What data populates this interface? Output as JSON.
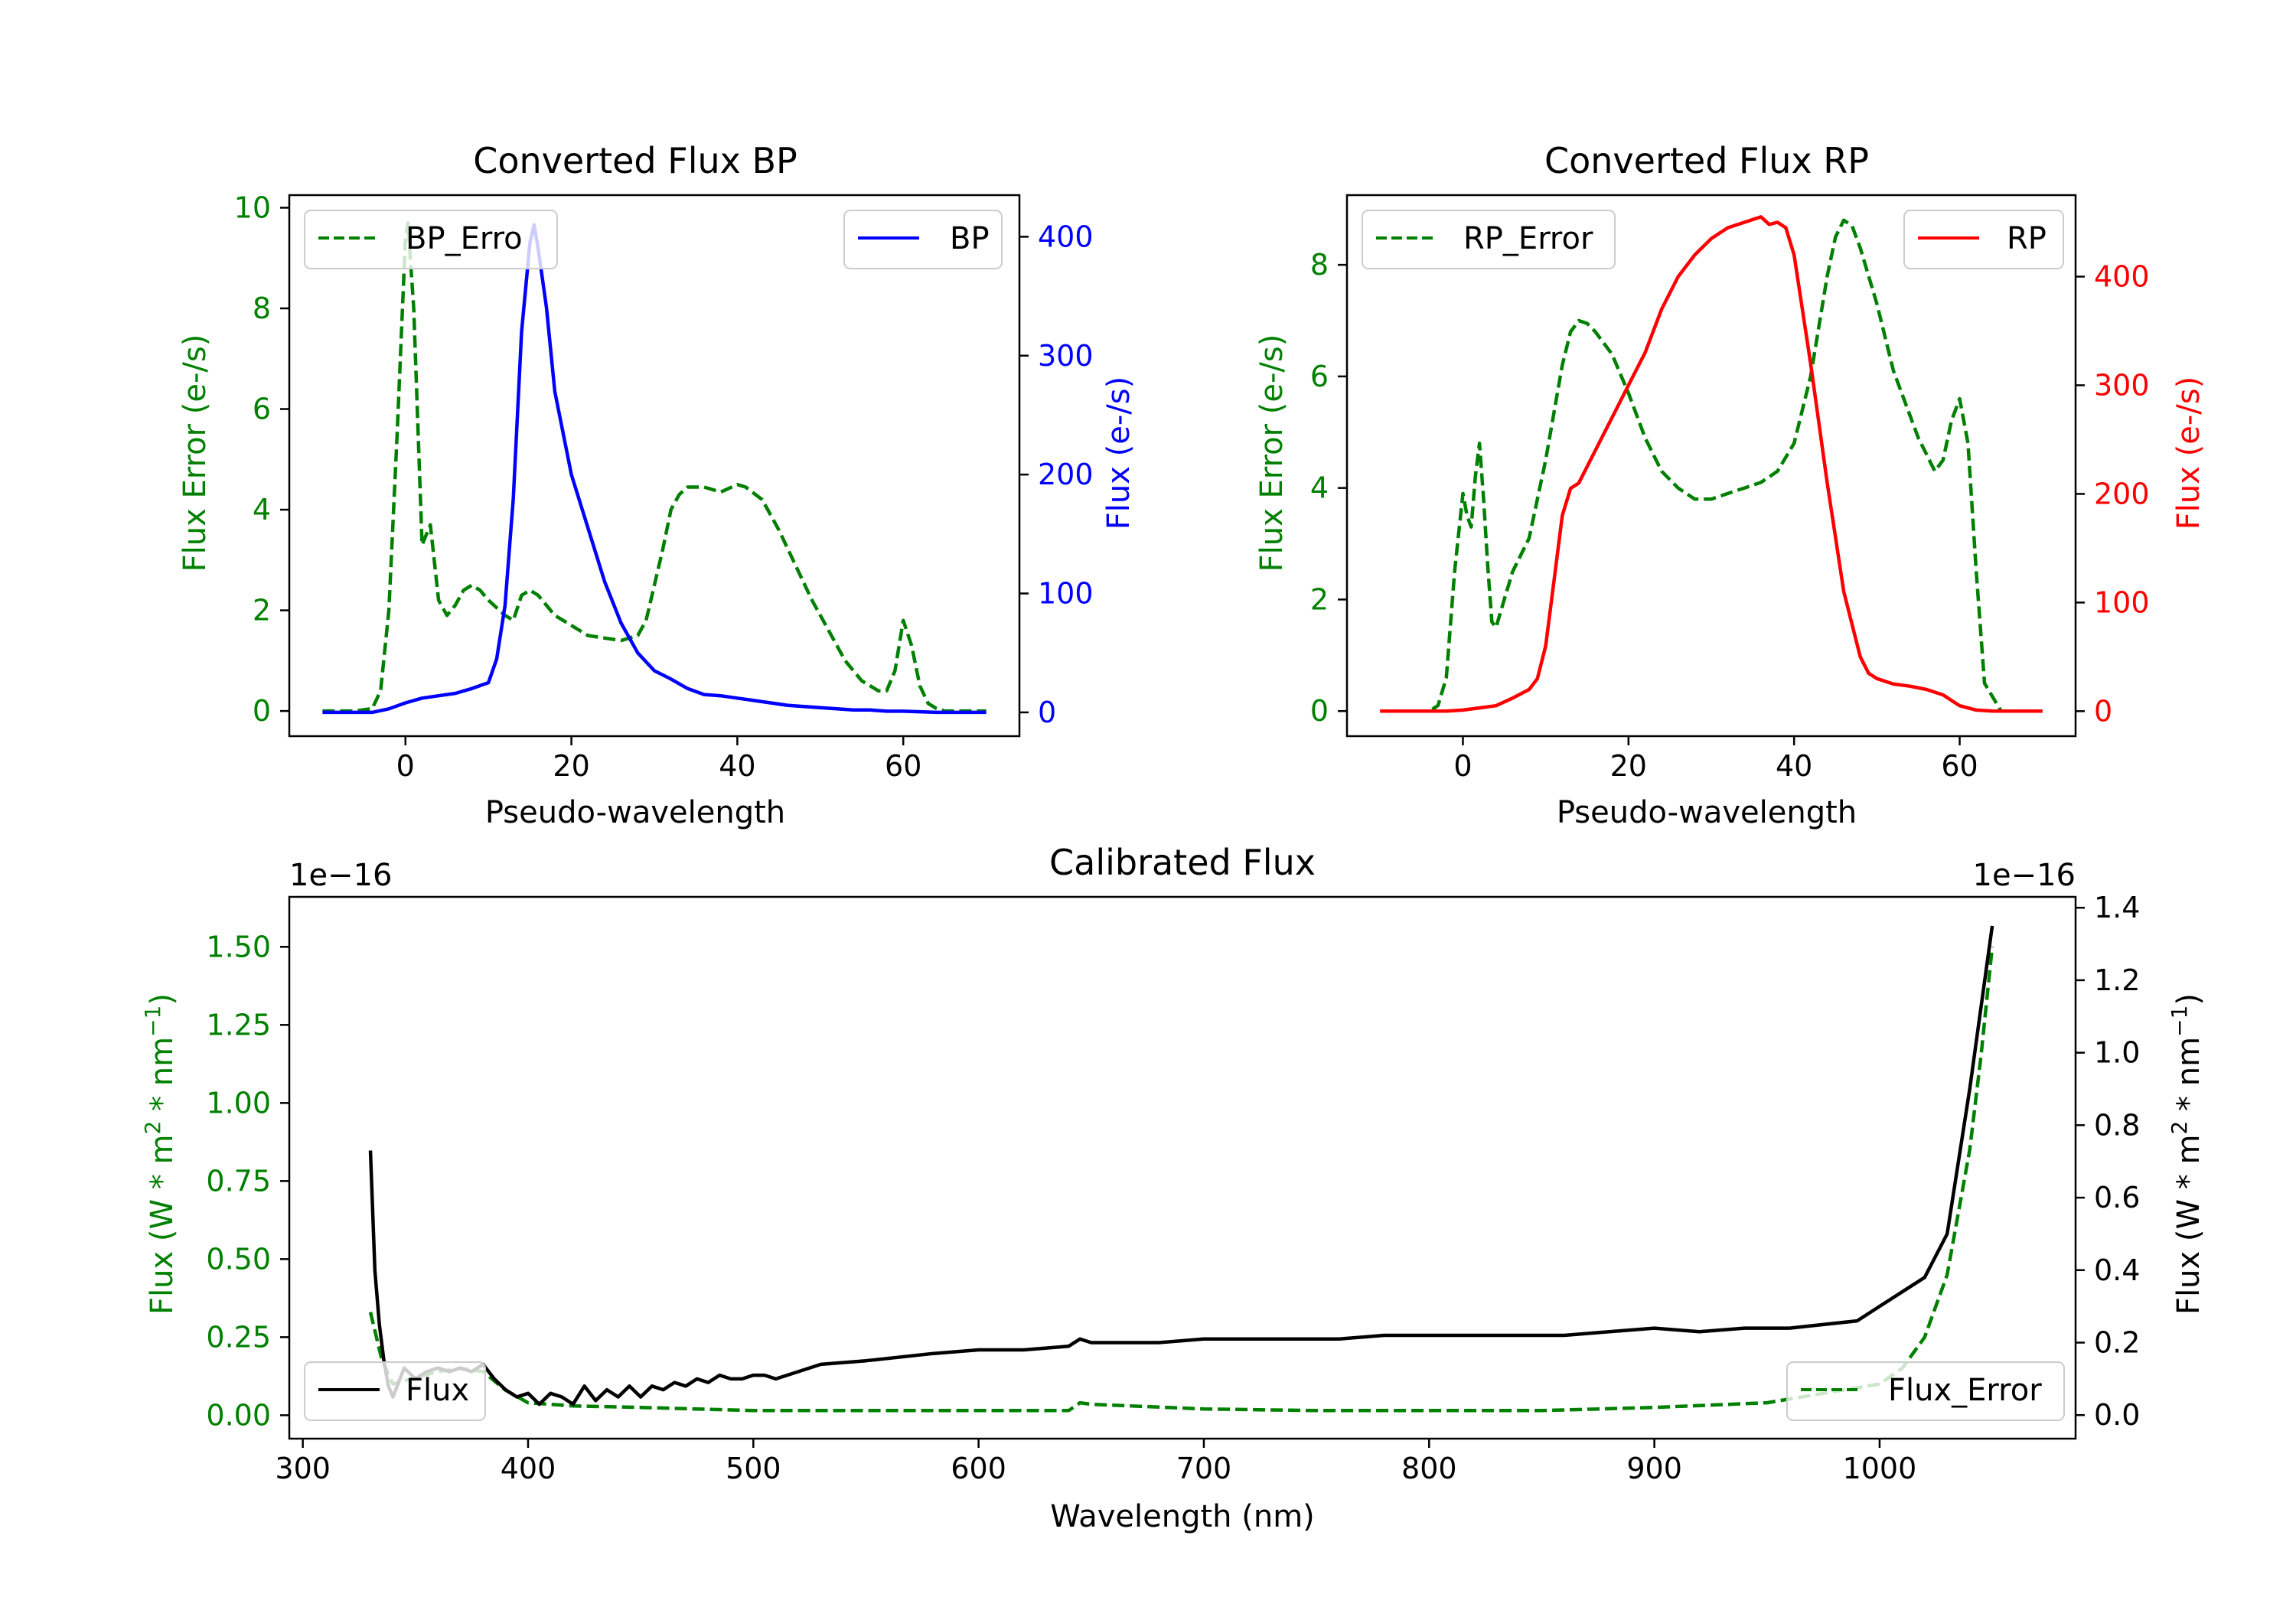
{
  "colors": {
    "green": "#008000",
    "blue": "#0000ff",
    "red": "#ff0000",
    "black": "#000000"
  },
  "chart_data": [
    {
      "type": "line",
      "title": "Converted Flux BP",
      "xlabel": "Pseudo-wavelength",
      "ylabel_left": "Flux Error (e-/s)",
      "ylabel_right": "Flux (e-/s)",
      "xlim": [
        -14,
        74
      ],
      "ylim_left": [
        -0.5,
        10.25
      ],
      "ylim_right": [
        -20,
        435
      ],
      "xticks": [
        0,
        20,
        40,
        60
      ],
      "yticks_left": [
        0,
        2,
        4,
        6,
        8,
        10
      ],
      "yticks_right": [
        0,
        100,
        200,
        300,
        400
      ],
      "series": [
        {
          "name": "BP_Error",
          "axis": "left",
          "color": "green",
          "style": "dashed",
          "legend_label": "BP_Erro",
          "legend": "top-left",
          "x": [
            -10,
            -6,
            -4,
            -3,
            -2,
            -1,
            0,
            0.3,
            1,
            2,
            3,
            4,
            5,
            6,
            7,
            8,
            9,
            10,
            12,
            13,
            14,
            15,
            16,
            18,
            20,
            22,
            24,
            26,
            28,
            29,
            30,
            31,
            32,
            33,
            34,
            36,
            38,
            40,
            41,
            43,
            45,
            47,
            49,
            51,
            53,
            55,
            56,
            57,
            58,
            59,
            60,
            61,
            62,
            63,
            64,
            65,
            70
          ],
          "y": [
            0,
            0,
            0.05,
            0.4,
            2.0,
            5.5,
            9.4,
            9.7,
            8.0,
            3.3,
            3.7,
            2.2,
            1.9,
            2.1,
            2.4,
            2.5,
            2.4,
            2.2,
            1.9,
            1.8,
            2.3,
            2.4,
            2.3,
            1.9,
            1.7,
            1.5,
            1.45,
            1.4,
            1.5,
            1.8,
            2.5,
            3.2,
            4.0,
            4.3,
            4.45,
            4.45,
            4.35,
            4.5,
            4.45,
            4.2,
            3.6,
            2.9,
            2.2,
            1.6,
            1.0,
            0.6,
            0.5,
            0.4,
            0.4,
            0.8,
            1.8,
            1.3,
            0.5,
            0.15,
            0.05,
            0,
            0
          ]
        },
        {
          "name": "BP",
          "axis": "right",
          "color": "blue",
          "style": "solid",
          "legend_label": "BP",
          "legend": "top-right",
          "x": [
            -10,
            -4,
            -2,
            0,
            2,
            4,
            6,
            8,
            10,
            11,
            12,
            13,
            14,
            15,
            15.5,
            16,
            17,
            18,
            20,
            22,
            24,
            26,
            28,
            30,
            32,
            34,
            36,
            38,
            40,
            42,
            44,
            46,
            48,
            50,
            52,
            54,
            56,
            58,
            60,
            62,
            64,
            70
          ],
          "y": [
            0,
            0,
            3,
            8,
            12,
            14,
            16,
            20,
            25,
            45,
            90,
            180,
            320,
            395,
            410,
            390,
            340,
            270,
            200,
            155,
            110,
            75,
            50,
            35,
            28,
            20,
            15,
            14,
            12,
            10,
            8,
            6,
            5,
            4,
            3,
            2,
            2,
            1,
            1,
            0.5,
            0,
            0
          ]
        }
      ]
    },
    {
      "type": "line",
      "title": "Converted Flux RP",
      "xlabel": "Pseudo-wavelength",
      "ylabel_left": "Flux Error (e-/s)",
      "ylabel_right": "Flux (e-/s)",
      "xlim": [
        -14,
        74
      ],
      "ylim_left": [
        -0.45,
        9.25
      ],
      "ylim_right": [
        -23,
        475
      ],
      "xticks": [
        0,
        20,
        40,
        60
      ],
      "yticks_left": [
        0,
        2,
        4,
        6,
        8
      ],
      "yticks_right": [
        0,
        100,
        200,
        300,
        400
      ],
      "series": [
        {
          "name": "RP_Error",
          "axis": "left",
          "color": "green",
          "style": "dashed",
          "legend_label": "RP_Error",
          "legend": "top-left",
          "x": [
            -10,
            -4,
            -3,
            -2,
            -1,
            0,
            0.5,
            1,
            1.5,
            2,
            2.5,
            3,
            3.5,
            4,
            5,
            6,
            7,
            8,
            10,
            12,
            13,
            14,
            15,
            16,
            18,
            20,
            22,
            24,
            26,
            28,
            30,
            32,
            34,
            36,
            38,
            40,
            42,
            44,
            45,
            46,
            47,
            48,
            50,
            52,
            54,
            55,
            56,
            57,
            58,
            59,
            60,
            61,
            62,
            63,
            65,
            70
          ],
          "y": [
            0,
            0,
            0.1,
            0.6,
            2.5,
            3.9,
            3.5,
            3.3,
            4.2,
            4.8,
            3.8,
            2.6,
            1.6,
            1.5,
            2.0,
            2.5,
            2.8,
            3.1,
            4.5,
            6.2,
            6.8,
            7.0,
            6.95,
            6.8,
            6.4,
            5.7,
            4.9,
            4.3,
            4.0,
            3.8,
            3.8,
            3.9,
            4.0,
            4.1,
            4.3,
            4.8,
            6.0,
            7.8,
            8.5,
            8.8,
            8.7,
            8.3,
            7.3,
            6.1,
            5.3,
            4.9,
            4.6,
            4.3,
            4.5,
            5.2,
            5.6,
            4.8,
            2.5,
            0.5,
            0,
            0
          ]
        },
        {
          "name": "RP",
          "axis": "right",
          "color": "red",
          "style": "solid",
          "legend_label": "RP",
          "legend": "top-right",
          "x": [
            -10,
            -2,
            0,
            2,
            4,
            6,
            8,
            9,
            10,
            11,
            12,
            13,
            14,
            15,
            16,
            18,
            20,
            22,
            24,
            26,
            28,
            30,
            32,
            34,
            36,
            37,
            38,
            39,
            40,
            42,
            44,
            46,
            48,
            49,
            50,
            52,
            54,
            56,
            58,
            60,
            62,
            64,
            70
          ],
          "y": [
            0,
            0,
            1,
            3,
            5,
            12,
            20,
            30,
            60,
            120,
            180,
            205,
            210,
            225,
            240,
            270,
            300,
            330,
            370,
            400,
            420,
            435,
            445,
            450,
            455,
            448,
            450,
            445,
            420,
            320,
            210,
            110,
            50,
            35,
            30,
            25,
            23,
            20,
            15,
            5,
            1,
            0,
            0
          ]
        }
      ]
    },
    {
      "type": "line",
      "title": "Calibrated Flux",
      "xlabel": "Wavelength (nm)",
      "ylabel_left": "Flux (W * m^2 * nm^-1)",
      "ylabel_right": "Flux (W * m^2 * nm^-1)",
      "offset_left": "1e−16",
      "offset_right": "1e−16",
      "xlim": [
        294,
        1087
      ],
      "ylim_left": [
        -0.075,
        1.66
      ],
      "ylim_right": [
        -0.065,
        1.43
      ],
      "xticks": [
        300,
        400,
        500,
        600,
        700,
        800,
        900,
        1000
      ],
      "yticks_left": [
        0.0,
        0.25,
        0.5,
        0.75,
        1.0,
        1.25,
        1.5
      ],
      "ytick_labels_left": [
        "0.00",
        "0.25",
        "0.50",
        "0.75",
        "1.00",
        "1.25",
        "1.50"
      ],
      "yticks_right": [
        0.0,
        0.2,
        0.4,
        0.6,
        0.8,
        1.0,
        1.2,
        1.4
      ],
      "ytick_labels_right": [
        "0.0",
        "0.2",
        "0.4",
        "0.6",
        "0.8",
        "1.0",
        "1.2",
        "1.4"
      ],
      "series": [
        {
          "name": "Flux_Error",
          "axis": "left",
          "color": "green",
          "style": "dashed",
          "legend_label": "Flux_Error",
          "legend": "bottom-right",
          "x": [
            330,
            335,
            340,
            350,
            360,
            370,
            380,
            390,
            400,
            420,
            450,
            500,
            550,
            600,
            640,
            645,
            650,
            700,
            750,
            800,
            850,
            900,
            950,
            1000,
            1010,
            1020,
            1030,
            1040,
            1045,
            1050
          ],
          "y": [
            0.33,
            0.18,
            0.1,
            0.12,
            0.14,
            0.15,
            0.14,
            0.08,
            0.04,
            0.03,
            0.025,
            0.015,
            0.015,
            0.015,
            0.015,
            0.04,
            0.035,
            0.02,
            0.015,
            0.015,
            0.015,
            0.025,
            0.04,
            0.1,
            0.15,
            0.25,
            0.45,
            0.85,
            1.15,
            1.5
          ]
        },
        {
          "name": "Flux",
          "axis": "right",
          "color": "black",
          "style": "solid",
          "legend_label": "Flux",
          "legend": "bottom-left",
          "x": [
            330,
            332,
            334,
            336,
            338,
            340,
            345,
            350,
            355,
            360,
            365,
            370,
            375,
            380,
            385,
            390,
            395,
            400,
            405,
            410,
            415,
            420,
            425,
            430,
            435,
            440,
            445,
            450,
            455,
            460,
            465,
            470,
            475,
            480,
            485,
            490,
            495,
            500,
            505,
            510,
            515,
            520,
            530,
            550,
            580,
            600,
            620,
            640,
            645,
            650,
            660,
            680,
            700,
            720,
            740,
            760,
            780,
            800,
            820,
            840,
            860,
            880,
            900,
            920,
            940,
            960,
            990,
            1000,
            1010,
            1020,
            1030,
            1040,
            1050
          ],
          "y": [
            0.73,
            0.4,
            0.25,
            0.15,
            0.08,
            0.05,
            0.13,
            0.1,
            0.12,
            0.13,
            0.12,
            0.13,
            0.12,
            0.14,
            0.1,
            0.07,
            0.05,
            0.06,
            0.03,
            0.06,
            0.05,
            0.03,
            0.08,
            0.04,
            0.07,
            0.05,
            0.08,
            0.05,
            0.08,
            0.07,
            0.09,
            0.08,
            0.1,
            0.09,
            0.11,
            0.1,
            0.1,
            0.11,
            0.11,
            0.1,
            0.11,
            0.12,
            0.14,
            0.15,
            0.17,
            0.18,
            0.18,
            0.19,
            0.21,
            0.2,
            0.2,
            0.2,
            0.21,
            0.21,
            0.21,
            0.21,
            0.22,
            0.22,
            0.22,
            0.22,
            0.22,
            0.23,
            0.24,
            0.23,
            0.24,
            0.24,
            0.26,
            0.3,
            0.34,
            0.38,
            0.5,
            0.9,
            1.35
          ]
        }
      ]
    }
  ]
}
